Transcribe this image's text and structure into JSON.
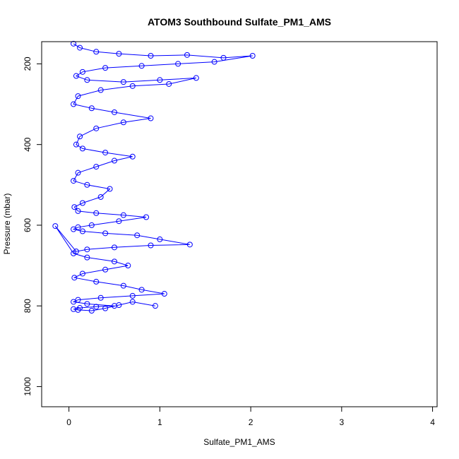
{
  "chart_data": {
    "type": "scatter",
    "title": "ATOM3 Southbound Sulfate_PM1_AMS",
    "xlabel": "Sulfate_PM1_AMS",
    "ylabel": "Pressure (mbar)",
    "xlim": [
      -0.3,
      4.05
    ],
    "ylim": [
      1050,
      145
    ],
    "y_reversed": true,
    "x_ticks": [
      0,
      1,
      2,
      3,
      4
    ],
    "x_tick_labels": [
      "0",
      "1",
      "2",
      "3",
      "4"
    ],
    "y_ticks": [
      200,
      400,
      600,
      800,
      1000
    ],
    "y_tick_labels": [
      "200",
      "400",
      "600",
      "800",
      "1000"
    ],
    "grid": false,
    "legend": "none",
    "series_color": "#0000ff",
    "marker": "open-circle",
    "connect_points": true,
    "series": [
      {
        "x": [
          0.05,
          0.12,
          0.3,
          0.55,
          0.9,
          1.3,
          1.7,
          2.02,
          1.6,
          1.2,
          0.8,
          0.4,
          0.15,
          0.08,
          0.2,
          0.6,
          1.0,
          1.4,
          1.1,
          0.7,
          0.35,
          0.1,
          0.05,
          0.25,
          0.5,
          0.9,
          0.6,
          0.3,
          0.12,
          0.08,
          0.15,
          0.4,
          0.7,
          0.5,
          0.3,
          0.1,
          0.05,
          0.2,
          0.45,
          0.35,
          0.15,
          0.06,
          0.1,
          0.3,
          0.6,
          0.85,
          0.55,
          0.25,
          0.1,
          0.05,
          0.15,
          0.4,
          0.75,
          1.0,
          1.33,
          0.9,
          0.5,
          0.2,
          0.08,
          -0.15,
          0.05,
          0.2,
          0.5,
          0.65,
          0.4,
          0.15,
          0.06,
          0.3,
          0.6,
          0.8,
          1.05,
          0.7,
          0.35,
          0.1,
          0.05,
          0.2,
          0.5,
          0.3,
          0.12,
          0.05,
          0.1,
          0.25,
          0.4,
          0.55,
          0.7,
          0.95
        ],
        "y": [
          150,
          160,
          170,
          175,
          180,
          178,
          185,
          180,
          195,
          200,
          205,
          210,
          220,
          230,
          240,
          245,
          240,
          235,
          250,
          255,
          265,
          280,
          300,
          310,
          320,
          335,
          345,
          360,
          380,
          400,
          410,
          420,
          430,
          440,
          455,
          470,
          490,
          500,
          510,
          530,
          545,
          555,
          565,
          570,
          575,
          580,
          590,
          600,
          605,
          610,
          615,
          620,
          625,
          635,
          648,
          650,
          655,
          660,
          665,
          602,
          670,
          680,
          690,
          700,
          710,
          720,
          730,
          740,
          750,
          760,
          770,
          775,
          780,
          785,
          790,
          795,
          800,
          802,
          805,
          808,
          810,
          812,
          806,
          798,
          790,
          800
        ]
      }
    ]
  }
}
